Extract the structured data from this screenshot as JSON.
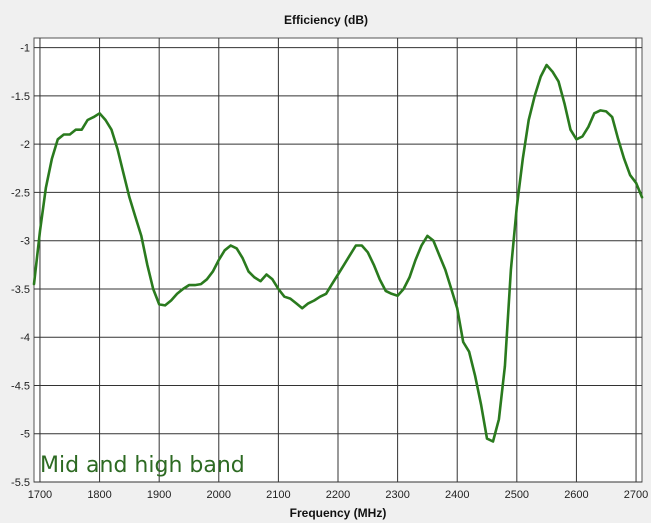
{
  "chart_data": {
    "type": "line",
    "title": "Efficiency (dB)",
    "xlabel": "Frequency  (MHz)",
    "ylabel": "",
    "xlim": [
      1690,
      2710
    ],
    "ylim": [
      -5.5,
      -0.9
    ],
    "x_ticks": [
      1700,
      1800,
      1900,
      2000,
      2100,
      2200,
      2300,
      2400,
      2500,
      2600,
      2700
    ],
    "y_ticks": [
      -1,
      -1.5,
      -2,
      -2.5,
      -3,
      -3.5,
      -4,
      -4.5,
      -5,
      -5.5
    ],
    "grid": true,
    "annotation": "Mid and high band",
    "series": [
      {
        "color": "#2a7a1e",
        "points": [
          [
            1690,
            -3.45
          ],
          [
            1700,
            -2.9
          ],
          [
            1710,
            -2.45
          ],
          [
            1720,
            -2.15
          ],
          [
            1730,
            -1.95
          ],
          [
            1740,
            -1.9
          ],
          [
            1750,
            -1.9
          ],
          [
            1760,
            -1.85
          ],
          [
            1770,
            -1.85
          ],
          [
            1780,
            -1.75
          ],
          [
            1790,
            -1.72
          ],
          [
            1800,
            -1.68
          ],
          [
            1810,
            -1.75
          ],
          [
            1820,
            -1.85
          ],
          [
            1830,
            -2.05
          ],
          [
            1840,
            -2.3
          ],
          [
            1850,
            -2.55
          ],
          [
            1860,
            -2.75
          ],
          [
            1870,
            -2.95
          ],
          [
            1880,
            -3.25
          ],
          [
            1890,
            -3.5
          ],
          [
            1900,
            -3.66
          ],
          [
            1910,
            -3.67
          ],
          [
            1920,
            -3.62
          ],
          [
            1930,
            -3.55
          ],
          [
            1940,
            -3.5
          ],
          [
            1950,
            -3.46
          ],
          [
            1960,
            -3.46
          ],
          [
            1970,
            -3.45
          ],
          [
            1980,
            -3.4
          ],
          [
            1990,
            -3.32
          ],
          [
            2000,
            -3.2
          ],
          [
            2010,
            -3.1
          ],
          [
            2020,
            -3.05
          ],
          [
            2030,
            -3.08
          ],
          [
            2040,
            -3.18
          ],
          [
            2050,
            -3.32
          ],
          [
            2060,
            -3.38
          ],
          [
            2070,
            -3.42
          ],
          [
            2080,
            -3.35
          ],
          [
            2090,
            -3.4
          ],
          [
            2100,
            -3.5
          ],
          [
            2110,
            -3.58
          ],
          [
            2120,
            -3.6
          ],
          [
            2130,
            -3.65
          ],
          [
            2140,
            -3.7
          ],
          [
            2150,
            -3.65
          ],
          [
            2160,
            -3.62
          ],
          [
            2170,
            -3.58
          ],
          [
            2180,
            -3.55
          ],
          [
            2190,
            -3.45
          ],
          [
            2200,
            -3.35
          ],
          [
            2210,
            -3.25
          ],
          [
            2220,
            -3.15
          ],
          [
            2230,
            -3.05
          ],
          [
            2240,
            -3.05
          ],
          [
            2250,
            -3.12
          ],
          [
            2260,
            -3.25
          ],
          [
            2270,
            -3.4
          ],
          [
            2280,
            -3.52
          ],
          [
            2290,
            -3.55
          ],
          [
            2300,
            -3.57
          ],
          [
            2310,
            -3.5
          ],
          [
            2320,
            -3.38
          ],
          [
            2330,
            -3.2
          ],
          [
            2340,
            -3.05
          ],
          [
            2350,
            -2.95
          ],
          [
            2360,
            -3.0
          ],
          [
            2370,
            -3.15
          ],
          [
            2380,
            -3.3
          ],
          [
            2390,
            -3.5
          ],
          [
            2400,
            -3.7
          ],
          [
            2410,
            -4.05
          ],
          [
            2420,
            -4.15
          ],
          [
            2430,
            -4.4
          ],
          [
            2440,
            -4.7
          ],
          [
            2450,
            -5.05
          ],
          [
            2460,
            -5.08
          ],
          [
            2470,
            -4.85
          ],
          [
            2480,
            -4.3
          ],
          [
            2490,
            -3.3
          ],
          [
            2500,
            -2.65
          ],
          [
            2510,
            -2.15
          ],
          [
            2520,
            -1.75
          ],
          [
            2530,
            -1.5
          ],
          [
            2540,
            -1.3
          ],
          [
            2550,
            -1.18
          ],
          [
            2560,
            -1.25
          ],
          [
            2570,
            -1.35
          ],
          [
            2580,
            -1.58
          ],
          [
            2590,
            -1.85
          ],
          [
            2600,
            -1.95
          ],
          [
            2610,
            -1.92
          ],
          [
            2620,
            -1.82
          ],
          [
            2630,
            -1.68
          ],
          [
            2640,
            -1.65
          ],
          [
            2650,
            -1.66
          ],
          [
            2660,
            -1.72
          ],
          [
            2670,
            -1.95
          ],
          [
            2680,
            -2.15
          ],
          [
            2690,
            -2.32
          ],
          [
            2700,
            -2.4
          ],
          [
            2710,
            -2.55
          ]
        ]
      }
    ]
  }
}
